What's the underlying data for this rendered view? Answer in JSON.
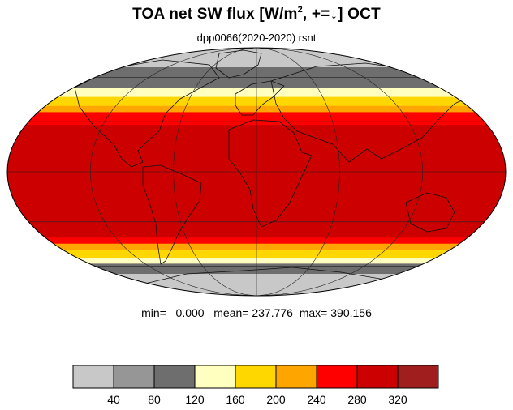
{
  "title": {
    "prefix": "TOA net SW flux [W/m",
    "superscript": "2",
    "suffix": ", +=↓]  OCT"
  },
  "subtitle": "dpp0066(2020-2020)   rsnt",
  "stats": {
    "min_label": "min=",
    "min_value": "0.000",
    "mean_label": "mean=",
    "mean_value": "237.776",
    "max_label": "max=",
    "max_value": "390.156"
  },
  "map": {
    "projection": "mollweide",
    "field": "rsnt",
    "zonal_bands": [
      {
        "lat_from": 90,
        "lat_to": 68,
        "color": "#c8c8c8"
      },
      {
        "lat_from": 68,
        "lat_to": 52,
        "color": "#6e6e6e"
      },
      {
        "lat_from": 52,
        "lat_to": 46,
        "color": "#ffffc0"
      },
      {
        "lat_from": 46,
        "lat_to": 40,
        "color": "#ffd700"
      },
      {
        "lat_from": 40,
        "lat_to": 36,
        "color": "#ffa500"
      },
      {
        "lat_from": 36,
        "lat_to": 28,
        "color": "#ff0000"
      },
      {
        "lat_from": 28,
        "lat_to": -40,
        "color": "#cd0000"
      },
      {
        "lat_from": -40,
        "lat_to": -44,
        "color": "#ff0000"
      },
      {
        "lat_from": -44,
        "lat_to": -48,
        "color": "#ffa500"
      },
      {
        "lat_from": -48,
        "lat_to": -54,
        "color": "#ffd700"
      },
      {
        "lat_from": -54,
        "lat_to": -58,
        "color": "#ffffc0"
      },
      {
        "lat_from": -58,
        "lat_to": -66,
        "color": "#6e6e6e"
      },
      {
        "lat_from": -66,
        "lat_to": -90,
        "color": "#c8c8c8"
      }
    ],
    "graticule_lats": [
      -60,
      -30,
      0,
      30,
      60
    ],
    "graticule_lons": [
      -120,
      -60,
      0,
      60,
      120
    ]
  },
  "colorbar": {
    "colors": [
      "#c8c8c8",
      "#969696",
      "#6e6e6e",
      "#ffffc0",
      "#ffd700",
      "#ffa500",
      "#ff0000",
      "#cd0000",
      "#a01e1e"
    ],
    "tick_labels": [
      "40",
      "80",
      "120",
      "160",
      "200",
      "240",
      "280",
      "320"
    ]
  }
}
